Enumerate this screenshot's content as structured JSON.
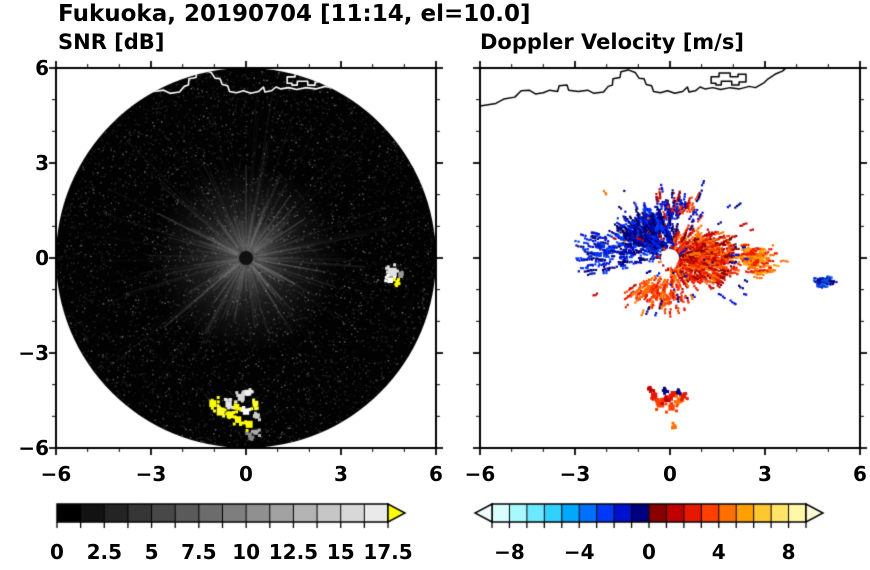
{
  "header": {
    "title": "Fukuoka, 20190704 [11:14, el=10.0]"
  },
  "colors": {
    "background": "#ffffff",
    "frame": "#000000",
    "coastline_left_panel": "#ffffff",
    "coastline_right_panel": "#000000"
  },
  "panels": {
    "snr": {
      "title": "SNR [dB]",
      "x_tick_labels": [
        "−6",
        "−3",
        "0",
        "3",
        "6"
      ],
      "y_tick_labels": [
        "6",
        "3",
        "0",
        "−3",
        "−6"
      ],
      "colorbar_tick_labels": [
        "0",
        "2.5",
        "5",
        "7.5",
        "10",
        "12.5",
        "15",
        "17.5"
      ]
    },
    "doppler": {
      "title": "Doppler Velocity [m/s]",
      "x_tick_labels": [
        "−6",
        "−3",
        "0",
        "3",
        "6"
      ],
      "colorbar_tick_labels": [
        "−8",
        "−4",
        "0",
        "4",
        "8"
      ]
    }
  },
  "chart_data": [
    {
      "type": "heatmap",
      "panel": "left",
      "title": "SNR [dB]",
      "xlim": [
        -6,
        6
      ],
      "ylim": [
        -6,
        6
      ],
      "xticks": [
        -6,
        -3,
        0,
        3,
        6
      ],
      "yticks": [
        6,
        3,
        0,
        -3,
        -6
      ],
      "minor_tick_interval": 1,
      "grid": false,
      "colorbar": {
        "range": [
          0,
          17.5
        ],
        "tick_values": [
          0,
          2.5,
          5,
          7.5,
          10,
          12.5,
          15,
          17.5
        ],
        "n_segments": 14,
        "colormap": "black-to-white grayscale",
        "segment_colors": [
          "#000000",
          "#121212",
          "#242424",
          "#363636",
          "#484848",
          "#5a5a5a",
          "#6c6c6c",
          "#7e7e7e",
          "#909090",
          "#a2a2a2",
          "#b4b4b4",
          "#c6c6c6",
          "#d8d8d8",
          "#eaeaea"
        ],
        "over_arrow_color": "#ffff00"
      },
      "scan": {
        "shape": "disk",
        "center": [
          0,
          0
        ],
        "radius": 6,
        "background_color": "#020202",
        "description": "PPI radar scan: dark noise-speckled disk with gray radial spokes and a brighter haze within about 3 of the radar, a small dark spot at the origin, strong off-scale (yellow/white) echo cluster near (0,-4.8) and an isolated echo near (4.7,-0.6); coastline drawn in white across the top of the disk."
      },
      "echoes": [
        {
          "x": -1.05,
          "y": -4.6,
          "size": 0.22,
          "color": "#ffff00"
        },
        {
          "x": -0.8,
          "y": -4.85,
          "size": 0.25,
          "color": "#ffff33"
        },
        {
          "x": -0.55,
          "y": -4.62,
          "size": 0.2,
          "color": "#e8e8e8"
        },
        {
          "x": -0.5,
          "y": -4.95,
          "size": 0.22,
          "color": "#ffff00"
        },
        {
          "x": -0.3,
          "y": -4.7,
          "size": 0.18,
          "color": "#ffff00"
        },
        {
          "x": -0.25,
          "y": -5.1,
          "size": 0.2,
          "color": "#ffff00"
        },
        {
          "x": -0.15,
          "y": -4.4,
          "size": 0.22,
          "color": "#d8d8d8"
        },
        {
          "x": 0.05,
          "y": -4.25,
          "size": 0.18,
          "color": "#f0f0f0"
        },
        {
          "x": 0.0,
          "y": -4.85,
          "size": 0.2,
          "color": "#ffffff"
        },
        {
          "x": 0.1,
          "y": -5.25,
          "size": 0.22,
          "color": "#ffff00"
        },
        {
          "x": 0.3,
          "y": -4.6,
          "size": 0.18,
          "color": "#ffff33"
        },
        {
          "x": 0.35,
          "y": -5.0,
          "size": 0.15,
          "color": "#cccccc"
        },
        {
          "x": 0.3,
          "y": -5.5,
          "size": 0.15,
          "color": "#aaaaaa"
        },
        {
          "x": 0.12,
          "y": -5.62,
          "size": 0.12,
          "color": "#888888"
        },
        {
          "x": 4.62,
          "y": -0.45,
          "size": 0.28,
          "color": "#e0e0e0"
        },
        {
          "x": 4.55,
          "y": -0.7,
          "size": 0.18,
          "color": "#ffffff"
        },
        {
          "x": 4.78,
          "y": -0.78,
          "size": 0.12,
          "color": "#ffff00"
        },
        {
          "x": 4.9,
          "y": -0.5,
          "size": 0.1,
          "color": "#999999"
        }
      ],
      "coastline": {
        "paths": [
          {
            "closed": false,
            "points": [
              [
                -6.0,
                4.8
              ],
              [
                -5.5,
                4.88
              ],
              [
                -5.25,
                5.02
              ],
              [
                -4.9,
                5.08
              ],
              [
                -4.7,
                5.28
              ],
              [
                -4.45,
                5.3
              ],
              [
                -4.25,
                5.18
              ],
              [
                -4.0,
                5.22
              ],
              [
                -3.8,
                5.3
              ],
              [
                -3.55,
                5.26
              ],
              [
                -3.5,
                5.44
              ],
              [
                -3.25,
                5.46
              ],
              [
                -3.2,
                5.3
              ],
              [
                -2.9,
                5.26
              ],
              [
                -2.6,
                5.3
              ],
              [
                -2.4,
                5.2
              ],
              [
                -2.1,
                5.24
              ],
              [
                -1.95,
                5.42
              ],
              [
                -1.82,
                5.46
              ],
              [
                -1.8,
                5.66
              ],
              [
                -1.58,
                5.7
              ],
              [
                -1.55,
                5.88
              ],
              [
                -1.32,
                5.94
              ],
              [
                -1.1,
                5.86
              ],
              [
                -0.98,
                5.68
              ],
              [
                -0.82,
                5.66
              ],
              [
                -0.75,
                5.48
              ],
              [
                -0.58,
                5.44
              ],
              [
                -0.52,
                5.26
              ],
              [
                -0.3,
                5.22
              ],
              [
                -0.08,
                5.28
              ],
              [
                0.15,
                5.2
              ],
              [
                0.4,
                5.26
              ],
              [
                0.55,
                5.4
              ],
              [
                0.6,
                5.24
              ],
              [
                0.8,
                5.28
              ],
              [
                0.95,
                5.4
              ],
              [
                1.1,
                5.34
              ],
              [
                1.35,
                5.38
              ],
              [
                1.6,
                5.32
              ],
              [
                1.9,
                5.38
              ],
              [
                2.2,
                5.34
              ],
              [
                2.5,
                5.42
              ],
              [
                2.7,
                5.38
              ],
              [
                2.95,
                5.52
              ],
              [
                3.1,
                5.66
              ],
              [
                3.35,
                5.82
              ],
              [
                3.55,
                5.9
              ],
              [
                3.72,
                6.05
              ]
            ]
          },
          {
            "closed": true,
            "points": [
              [
                1.3,
                5.52
              ],
              [
                1.3,
                5.72
              ],
              [
                1.55,
                5.72
              ],
              [
                1.55,
                5.84
              ],
              [
                1.9,
                5.84
              ],
              [
                1.9,
                5.72
              ],
              [
                2.15,
                5.72
              ],
              [
                2.15,
                5.8
              ],
              [
                2.4,
                5.8
              ],
              [
                2.4,
                5.56
              ],
              [
                2.18,
                5.56
              ],
              [
                2.18,
                5.46
              ],
              [
                1.95,
                5.46
              ],
              [
                1.95,
                5.58
              ],
              [
                1.62,
                5.58
              ],
              [
                1.62,
                5.46
              ],
              [
                1.45,
                5.46
              ],
              [
                1.45,
                5.52
              ]
            ]
          }
        ]
      }
    },
    {
      "type": "heatmap",
      "panel": "right",
      "title": "Doppler Velocity [m/s]",
      "xlim": [
        -6,
        6
      ],
      "ylim": [
        -6,
        6
      ],
      "xticks": [
        -6,
        -3,
        0,
        3,
        6
      ],
      "yticks": [
        6,
        3,
        0,
        -3,
        -6
      ],
      "minor_tick_interval": 1,
      "grid": false,
      "colorbar": {
        "range": [
          -9,
          9
        ],
        "tick_values": [
          -8,
          -4,
          0,
          4,
          8
        ],
        "n_segments": 18,
        "colormap": "pale-cyan to dark-blue (negative), dark-red to pale-yellow (positive)",
        "segment_colors": [
          "#d8ffff",
          "#a8f8ff",
          "#6ce8ff",
          "#30d0ff",
          "#00a8ff",
          "#0070ff",
          "#0038f8",
          "#0010d0",
          "#000080",
          "#880000",
          "#c00000",
          "#e81800",
          "#ff4000",
          "#ff7000",
          "#ffa000",
          "#ffc830",
          "#ffe468",
          "#fff8a8"
        ],
        "under_arrow_color": "#f0ffff",
        "over_arrow_color": "#fffcd8"
      },
      "description": "Doppler velocity speckle around the radar: approaching (blue, negative) echoes concentrated north-west of the radar plus a detached patch near (4.8,-0.7); receding (red/orange, positive) echoes east, south-east and south, with a detached cluster near (0,-4.5); radar origin masked by a white circle; coastline drawn in black.",
      "echo_regions": [
        {
          "label": "approaching-core-nw",
          "x": [
            -1.7,
            0.35
          ],
          "y": [
            -0.15,
            1.7
          ],
          "colors": [
            "#000080",
            "#0010d0",
            "#0038f8",
            "#000060"
          ],
          "runs": 520
        },
        {
          "label": "approaching-west",
          "x": [
            -3.0,
            -1.2
          ],
          "y": [
            -0.5,
            0.9
          ],
          "colors": [
            "#0010d0",
            "#0038f8",
            "#000080"
          ],
          "runs": 110
        },
        {
          "label": "receding-core-e",
          "x": [
            -0.3,
            2.1
          ],
          "y": [
            -0.95,
            0.95
          ],
          "colors": [
            "#c00000",
            "#e81800",
            "#ff4000",
            "#880000",
            "#ff7000"
          ],
          "runs": 650
        },
        {
          "label": "receding-east-fringe",
          "x": [
            1.9,
            3.4
          ],
          "y": [
            -0.6,
            0.55
          ],
          "colors": [
            "#e81800",
            "#ff7000",
            "#ffa000"
          ],
          "runs": 140
        },
        {
          "label": "mixed-north",
          "x": [
            -0.6,
            1.0
          ],
          "y": [
            1.0,
            2.2
          ],
          "colors": [
            "#c00000",
            "#ff4000",
            "#0010d0",
            "#000080"
          ],
          "runs": 90
        },
        {
          "label": "receding-south",
          "x": [
            -1.4,
            0.7
          ],
          "y": [
            -1.7,
            -0.4
          ],
          "colors": [
            "#e81800",
            "#ff7000",
            "#ff4000"
          ],
          "runs": 130
        },
        {
          "label": "far-east-approaching",
          "x": [
            4.45,
            5.1
          ],
          "y": [
            -0.95,
            -0.5
          ],
          "colors": [
            "#0010d0",
            "#000080",
            "#0050e0"
          ],
          "runs": 40
        },
        {
          "label": "sparse-outliers",
          "x": [
            -3.1,
            3.5
          ],
          "y": [
            -2.0,
            2.4
          ],
          "colors": [
            "#c00000",
            "#0010d0",
            "#ff7000",
            "#000080"
          ],
          "runs": 80
        }
      ],
      "echoes": [
        {
          "x": -0.5,
          "y": -4.35,
          "size": 0.2,
          "color": "#e81800"
        },
        {
          "x": -0.3,
          "y": -4.6,
          "size": 0.24,
          "color": "#ff4000"
        },
        {
          "x": -0.08,
          "y": -4.45,
          "size": 0.2,
          "color": "#c00000"
        },
        {
          "x": 0.12,
          "y": -4.3,
          "size": 0.2,
          "color": "#e81800"
        },
        {
          "x": 0.3,
          "y": -4.5,
          "size": 0.18,
          "color": "#ff7000"
        },
        {
          "x": 0.05,
          "y": -4.72,
          "size": 0.2,
          "color": "#ff4000"
        },
        {
          "x": -0.15,
          "y": -4.2,
          "size": 0.1,
          "color": "#000080"
        },
        {
          "x": 0.28,
          "y": -4.22,
          "size": 0.1,
          "color": "#000080"
        },
        {
          "x": 0.45,
          "y": -4.38,
          "size": 0.12,
          "color": "#e81800"
        },
        {
          "x": 0.15,
          "y": -5.3,
          "size": 0.1,
          "color": "#ff7000"
        },
        {
          "x": -0.6,
          "y": -4.15,
          "size": 0.08,
          "color": "#c00000"
        }
      ],
      "coastline_overlay": "same path as left panel, drawn in black",
      "center_mask": {
        "shape": "circle",
        "center": [
          0,
          0
        ],
        "color": "#ffffff"
      }
    }
  ]
}
